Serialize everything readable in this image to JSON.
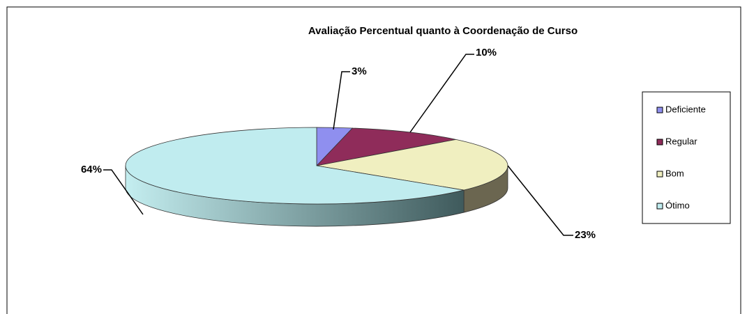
{
  "chart_data": {
    "type": "pie",
    "title": "Avaliação  Percentual quanto à Coordenação de Curso",
    "categories": [
      "Deficiente",
      "Regular",
      "Bom",
      "Ótimo"
    ],
    "values": [
      3,
      10,
      23,
      64
    ],
    "value_labels": [
      "3%",
      "10%",
      "23%",
      "64%"
    ],
    "colors": [
      "#8f8fef",
      "#8f2c5a",
      "#f0efc0",
      "#c0ecef"
    ],
    "legend": "right"
  }
}
